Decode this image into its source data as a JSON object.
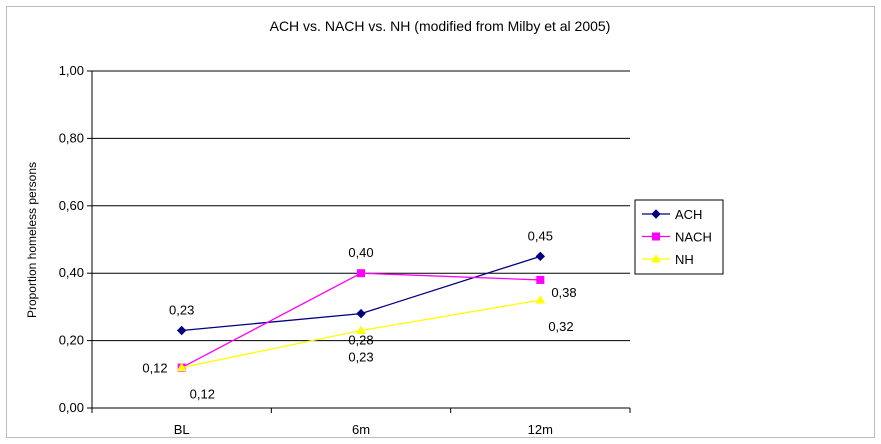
{
  "chart_data": {
    "type": "line",
    "title": "ACH vs. NACH vs. NH (modified from Milby et al 2005)",
    "xlabel": "",
    "ylabel": "Proportion homeless persons",
    "categories": [
      "BL",
      "6m",
      "12m"
    ],
    "ylim": [
      0,
      1
    ],
    "yticks": [
      "0,00",
      "0,20",
      "0,40",
      "0,60",
      "0,80",
      "1,00"
    ],
    "grid": true,
    "legend_position": "right",
    "series": [
      {
        "name": "ACH",
        "values": [
          0.23,
          0.28,
          0.45
        ],
        "labels": [
          "0,23",
          "0,28",
          "0,45"
        ],
        "color": "#000080",
        "marker": "diamond"
      },
      {
        "name": "NACH",
        "values": [
          0.12,
          0.4,
          0.38
        ],
        "labels": [
          "0,12",
          "0,40",
          "0,38"
        ],
        "color": "#ff00ff",
        "marker": "square"
      },
      {
        "name": "NH",
        "values": [
          0.12,
          0.23,
          0.32
        ],
        "labels": [
          "0,12",
          "0,23",
          "0,32"
        ],
        "color": "#ffff00",
        "marker": "triangle"
      }
    ]
  }
}
